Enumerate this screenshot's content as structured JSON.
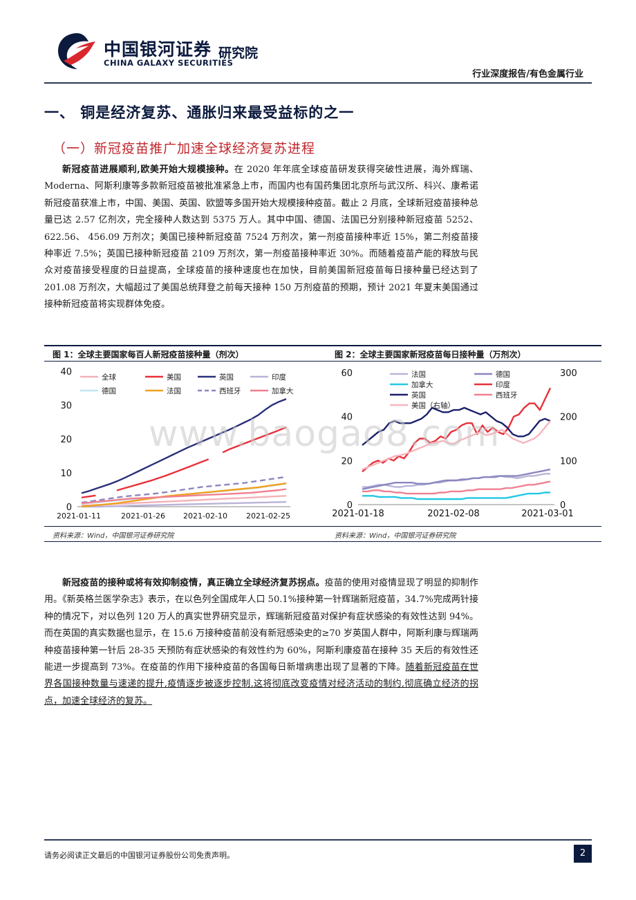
{
  "header": {
    "logo_cn": "中国银河证券",
    "logo_en": "CHINA GALAXY SECURITIES",
    "institute": "研究院",
    "category": "行业深度报告/有色金属行业"
  },
  "section": {
    "h1": "一、 铜是经济复苏、通胀归来最受益标的之一",
    "h2": "（一）新冠疫苗推广加速全球经济复苏进程"
  },
  "para1": {
    "lead": "新冠疫苗进展顺利,欧美开始大规模接种。",
    "body": "在 2020 年年底全球疫苗研发获得突破性进展，海外辉瑞、Moderna、阿斯利康等多款新冠疫苗被批准紧急上市，而国内也有国药集团北京所与武汉所、科兴、康希诺新冠疫苗获准上市，中国、美国、英国、欧盟等多国开始大规模接种疫苗。截止 2 月底，全球新冠疫苗接种总量已达 2.57 亿剂次，完全接种人数达到 5375 万人。其中中国、德国、法国已分别接种新冠疫苗 5252、622.56、 456.09 万剂次；美国已接种新冠疫苗 7524 万剂次，第一剂疫苗接种率近 15%，第二剂疫苗接种率近 7.5%；英国已接种新冠疫苗 2109 万剂次，第一剂疫苗接种率近 30%。而随着疫苗产能的释放与民众对疫苗接受程度的日益提高，全球疫苗的接种速度也在加快，目前美国新冠疫苗每日接种量已经达到了 201.08 万剂次，大幅超过了美国总统拜登之前每天接种 150 万剂疫苗的预期，预计 2021 年夏末美国通过接种新冠疫苗将实现群体免疫。"
  },
  "figure1": {
    "title": "图 1：全球主要国家每百人新冠疫苗接种量（剂次）",
    "source": "资料来源：Wind，中国银河证券研究院"
  },
  "figure2": {
    "title": "图 2：全球主要国家新冠疫苗每日接种量（万剂次）",
    "source": "资料来源：Wind，中国银河证券研究院"
  },
  "para2": {
    "lead": "新冠疫苗的接种或将有效抑制疫情，真正确立全球经济复苏拐点。",
    "body": "疫苗的使用对疫情显现了明显的抑制作用。《新英格兰医学杂志》表示，在以色列全国成年人口 50.1%接种第一针辉瑞新冠疫苗，34.7%完成两针接种的情况下，对以色列 120 万人的真实世界研究显示，辉瑞新冠疫苗对保护有症状感染的有效性达到 94%。而在英国的真实数据也显示，在 15.6 万接种疫苗前没有新冠感染史的≥70 岁英国人群中，阿斯利康与辉瑞两种疫苗接种第一针后 28-35 天预防有症状感染的有效性约为 60%，阿斯利康疫苗在接种 35 天后的有效性还能进一步提高到 73%。在疫苗的作用下接种疫苗的各国每日新增病患出现了显著的下降。",
    "underlined": "随着新冠疫苗在世界各国接种数量与速递的提升,疫情逐步被逐步控制,这将彻底改变疫情对经济活动的制约,彻底确立经济的拐点，加速全球经济的复苏。"
  },
  "footer": {
    "disclaimer": "请务必阅读正文最后的中国银河证券股份公司免责声明。",
    "page": "2"
  },
  "watermark": "www.baogao8.com",
  "chart_data": [
    {
      "type": "line",
      "x_ticks": [
        "2021-01-11",
        "2021-01-26",
        "2021-02-10",
        "2021-02-25"
      ],
      "ylim": [
        0,
        40
      ],
      "y_ticks": [
        0,
        10,
        20,
        30,
        40
      ],
      "legend": "top-left",
      "series": [
        {
          "name": "全球",
          "color": "#f4b0b8",
          "dash": false,
          "values": [
            0.3,
            0.4,
            0.5,
            0.6,
            0.7,
            0.8,
            0.9,
            1.0,
            1.1,
            1.2,
            1.3,
            1.4,
            1.5,
            1.6,
            1.7,
            1.8,
            1.9,
            2.0,
            2.1,
            2.2,
            2.3,
            2.4,
            2.5,
            2.6,
            2.7,
            2.8,
            2.9,
            3.0,
            3.1,
            3.2
          ]
        },
        {
          "name": "美国",
          "color": "#e8303a",
          "dash": false,
          "values": [
            2.7,
            3.0,
            3.3,
            null,
            null,
            4.8,
            5.4,
            6.0,
            6.6,
            7.2,
            7.8,
            8.5,
            9.2,
            10.0,
            10.8,
            11.6,
            12.4,
            13.2,
            14.0,
            null,
            16.0,
            17.0,
            17.8,
            18.6,
            19.4,
            20.2,
            21.0,
            21.8,
            22.6,
            23.4
          ]
        },
        {
          "name": "英国",
          "color": "#2a2f7a",
          "dash": false,
          "values": [
            4.0,
            4.6,
            5.3,
            6.0,
            6.7,
            7.5,
            8.4,
            9.4,
            10.4,
            11.4,
            12.4,
            13.4,
            14.4,
            15.4,
            16.4,
            17.4,
            18.3,
            19.2,
            20.1,
            21.0,
            21.9,
            22.8,
            23.8,
            24.8,
            25.8,
            27.0,
            28.6,
            30.0,
            31.0,
            31.8
          ]
        },
        {
          "name": "印度",
          "color": "#b9b3d8",
          "dash": false,
          "values": [
            0.0,
            0.0,
            0.0,
            0.05,
            0.1,
            0.15,
            0.2,
            0.3,
            0.35,
            0.4,
            0.45,
            0.5,
            0.55,
            0.6,
            0.65,
            0.7,
            0.75,
            0.8,
            0.85,
            0.9,
            0.95,
            1.0,
            1.05,
            1.1,
            1.15,
            1.2,
            1.25,
            1.3,
            1.35,
            1.4
          ]
        },
        {
          "name": "德国",
          "color": "#bfe6f3",
          "dash": false,
          "values": [
            0.8,
            1.0,
            1.2,
            1.4,
            1.6,
            1.8,
            2.0,
            2.2,
            2.3,
            2.4,
            2.6,
            2.8,
            3.0,
            3.2,
            3.4,
            3.6,
            3.8,
            4.0,
            4.2,
            4.4,
            4.6,
            4.8,
            5.0,
            5.2,
            5.4,
            5.6,
            5.9,
            6.2,
            6.5,
            6.8
          ]
        },
        {
          "name": "法国",
          "color": "#f0a020",
          "dash": false,
          "values": [
            0.1,
            0.2,
            0.4,
            0.6,
            0.8,
            1.0,
            1.3,
            1.6,
            1.9,
            2.2,
            2.5,
            2.8,
            3.1,
            3.3,
            3.5,
            3.7,
            3.9,
            4.1,
            4.3,
            4.5,
            4.7,
            4.9,
            5.1,
            5.3,
            5.5,
            5.7,
            6.0,
            6.3,
            6.6,
            6.9
          ]
        },
        {
          "name": "西班牙",
          "color": "#8a86c0",
          "dash": true,
          "values": [
            1.2,
            1.5,
            1.8,
            2.1,
            2.4,
            2.7,
            3.0,
            3.2,
            3.4,
            3.6,
            3.8,
            4.0,
            4.3,
            4.6,
            4.9,
            5.2,
            5.5,
            5.8,
            6.0,
            6.2,
            6.4,
            6.6,
            6.8,
            7.0,
            7.3,
            7.6,
            7.9,
            8.2,
            8.5,
            8.8
          ]
        },
        {
          "name": "加拿大",
          "color": "#f08090",
          "dash": false,
          "values": [
            1.0,
            1.2,
            1.4,
            1.6,
            1.8,
            2.0,
            2.2,
            2.4,
            2.5,
            2.6,
            2.7,
            2.8,
            2.9,
            3.0,
            3.1,
            3.2,
            3.3,
            3.4,
            3.5,
            3.6,
            3.7,
            3.8,
            3.9,
            4.0,
            4.1,
            4.3,
            4.5,
            4.7,
            4.9,
            5.2
          ]
        }
      ]
    },
    {
      "type": "line",
      "x_ticks": [
        "2021-01-18",
        "2021-02-08",
        "2021-03-01"
      ],
      "ylim": [
        0,
        60
      ],
      "y_ticks": [
        0,
        20,
        40,
        60
      ],
      "y2lim": [
        0,
        300
      ],
      "y2_ticks": [
        0,
        100,
        200,
        300
      ],
      "legend": "top-left",
      "series": [
        {
          "name": "法国",
          "color": "#b9b3d8",
          "axis": "left",
          "values": [
            8,
            8,
            8.5,
            9,
            9,
            8.5,
            8,
            8,
            8.5,
            8.5,
            9,
            9,
            9.5,
            10,
            10,
            10.5,
            11,
            11,
            11,
            11.5,
            12,
            12,
            12.5,
            12.5,
            13,
            13,
            12.5,
            12.5,
            12,
            12.5,
            13,
            13,
            13.5,
            14,
            14
          ]
        },
        {
          "name": "德国",
          "color": "#8a86c0",
          "axis": "left",
          "values": [
            7,
            7.5,
            8,
            8.5,
            9,
            9.5,
            10,
            10,
            10,
            10,
            9.5,
            9.5,
            9.5,
            10,
            10.5,
            11,
            11,
            11,
            11.5,
            11.5,
            12,
            12,
            12.5,
            12.5,
            12.5,
            13,
            13,
            13,
            13,
            13.5,
            14,
            14.5,
            15,
            15.5,
            16
          ]
        },
        {
          "name": "加拿大",
          "color": "#22c8e6",
          "axis": "left",
          "values": [
            4,
            4,
            4,
            3.5,
            3.5,
            3.5,
            3.5,
            3,
            3,
            3,
            2.5,
            2.5,
            2.5,
            2.5,
            2.5,
            2.5,
            2.5,
            2.5,
            2.5,
            3,
            3,
            3,
            3,
            3,
            3,
            3,
            3,
            3.5,
            4,
            4.5,
            5,
            5,
            5,
            5.5,
            5.5
          ]
        },
        {
          "name": "印度",
          "color": "#e8303a",
          "axis": "left",
          "values": [
            15,
            17,
            19,
            20,
            19,
            21,
            20,
            22,
            21,
            24,
            28,
            30,
            30,
            28,
            29,
            31,
            30,
            33,
            34,
            36,
            37,
            37,
            32,
            36,
            33,
            35,
            33,
            32,
            35,
            40,
            41,
            44,
            46,
            46,
            43,
            48,
            53
          ]
        },
        {
          "name": "英国",
          "color": "#1a1f6a",
          "axis": "left",
          "values": [
            27,
            29,
            31,
            33,
            34,
            37,
            38,
            37,
            37,
            37,
            38,
            39,
            41,
            44,
            43,
            42,
            42,
            43,
            43,
            44,
            43,
            42,
            41,
            42,
            40,
            38,
            37,
            35,
            32,
            31,
            31,
            32,
            35,
            38,
            39,
            38
          ]
        },
        {
          "name": "西班牙",
          "color": "#f08090",
          "axis": "left",
          "values": [
            6,
            6,
            6.5,
            6.5,
            6,
            6,
            5.5,
            5.5,
            5,
            5,
            5,
            5,
            5,
            5,
            5.5,
            5.5,
            6,
            6,
            6,
            6.5,
            6.5,
            7,
            7,
            7,
            7,
            7,
            7.5,
            7.5,
            8,
            8.5,
            9,
            9,
            9.5,
            10,
            10.5
          ]
        },
        {
          "name": "美国（右轴）",
          "color": "#f6b4bc",
          "axis": "right",
          "values": [
            80,
            85,
            90,
            95,
            100,
            105,
            110,
            112,
            115,
            120,
            125,
            130,
            135,
            140,
            142,
            145,
            140,
            138,
            145,
            150,
            155,
            160,
            165,
            158,
            160,
            165,
            170,
            160,
            150,
            145,
            140,
            145,
            150,
            160,
            175,
            190
          ]
        }
      ]
    }
  ]
}
